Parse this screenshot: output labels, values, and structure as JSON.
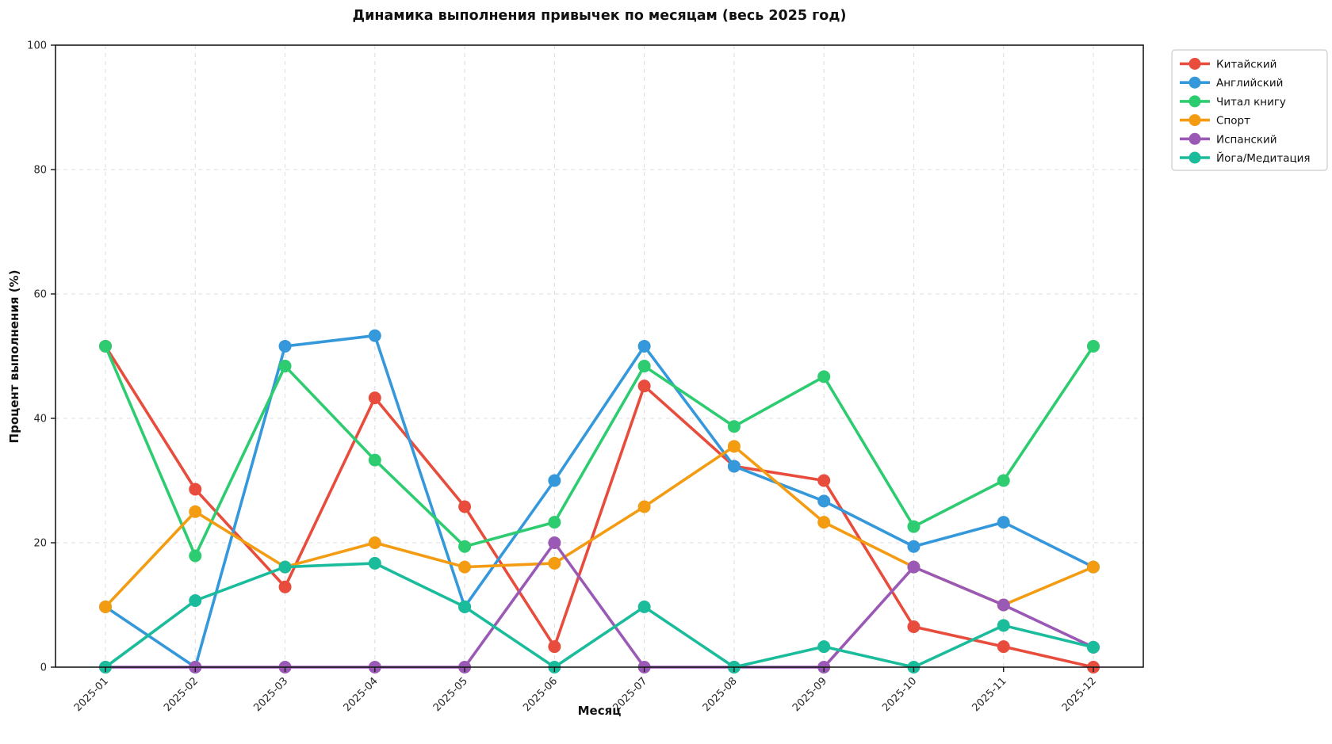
{
  "title": "Динамика выполнения привычек по месяцам (весь 2025 год)",
  "chart_data": {
    "type": "line",
    "x": [
      "2025-01",
      "2025-02",
      "2025-03",
      "2025-04",
      "2025-05",
      "2025-06",
      "2025-07",
      "2025-08",
      "2025-09",
      "2025-10",
      "2025-11",
      "2025-12"
    ],
    "series": [
      {
        "name": "Китайский",
        "color": "#e74c3c",
        "values": [
          51.6,
          28.6,
          12.9,
          43.3,
          25.8,
          3.3,
          45.2,
          32.3,
          30.0,
          6.5,
          3.3,
          0.0
        ]
      },
      {
        "name": "Английский",
        "color": "#3498db",
        "values": [
          9.7,
          0.0,
          51.6,
          53.3,
          9.7,
          30.0,
          51.6,
          32.3,
          26.7,
          19.4,
          23.3,
          16.1
        ]
      },
      {
        "name": "Читал книгу",
        "color": "#2ecc71",
        "values": [
          51.6,
          17.9,
          48.4,
          33.3,
          19.4,
          23.3,
          48.4,
          38.7,
          46.7,
          22.6,
          30.0,
          51.6
        ]
      },
      {
        "name": "Спорт",
        "color": "#f39c12",
        "values": [
          9.7,
          25.0,
          16.1,
          20.0,
          16.1,
          16.7,
          25.8,
          35.5,
          23.3,
          16.1,
          10.0,
          16.1
        ]
      },
      {
        "name": "Испанский",
        "color": "#9b59b6",
        "values": [
          0.0,
          0.0,
          0.0,
          0.0,
          0.0,
          20.0,
          0.0,
          0.0,
          0.0,
          16.1,
          10.0,
          3.2
        ]
      },
      {
        "name": "Йога/Медитация",
        "color": "#1abc9c",
        "values": [
          0.0,
          10.7,
          16.1,
          16.7,
          9.7,
          0.0,
          9.7,
          0.0,
          3.3,
          0.0,
          6.7,
          3.2
        ]
      }
    ],
    "xlabel": "Месяц",
    "ylabel": "Процент выполнения (%)",
    "ylim": [
      0,
      100
    ],
    "yticks": [
      0,
      20,
      40,
      60,
      80,
      100
    ],
    "grid": true,
    "grid_style": "dashed",
    "legend_position": "outside-upper-right",
    "colors": {
      "grid": "#dcdcdc",
      "spine": "#1a1a1a",
      "tick_label": "#262626",
      "legend_border": "#cccccc",
      "background": "#ffffff"
    }
  }
}
